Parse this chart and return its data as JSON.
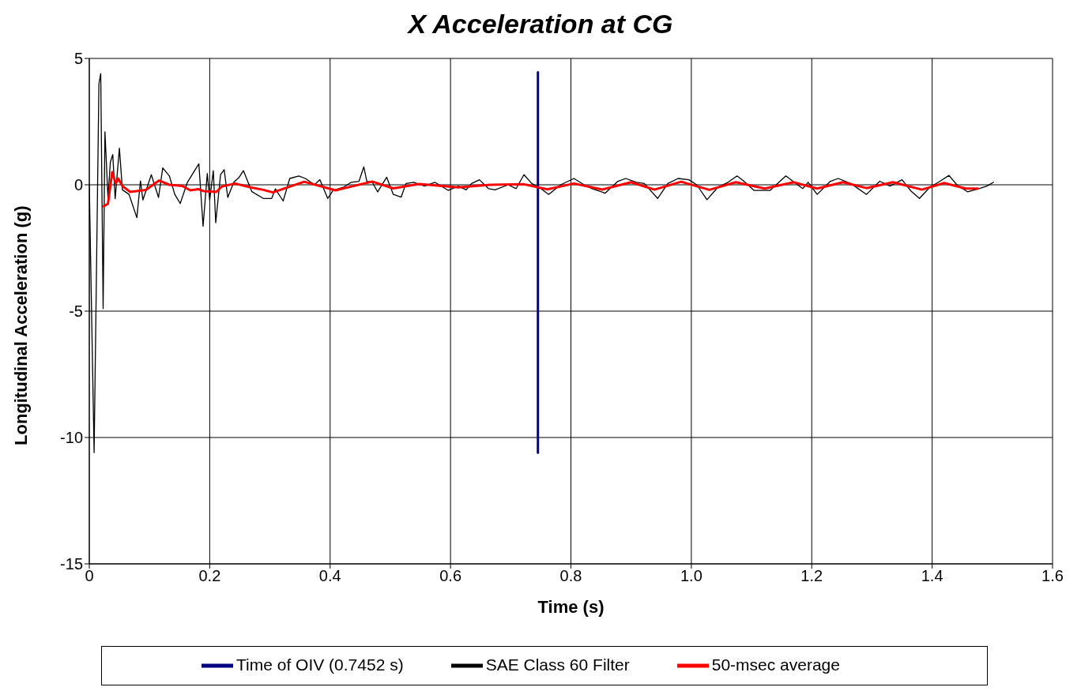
{
  "chart_data": {
    "type": "line",
    "title": "X Acceleration at CG",
    "xlabel": "Time (s)",
    "ylabel": "Longitudinal Acceleration (g)",
    "xlim": [
      0,
      1.6
    ],
    "xticks": [
      0,
      0.2,
      0.4,
      0.6,
      0.8,
      {
        "value": 1,
        "label": "1.0"
      },
      1.2,
      1.4,
      1.6
    ],
    "ylim": [
      -15,
      5
    ],
    "yticks": [
      -15,
      -10,
      -5,
      0,
      5
    ],
    "grid": true,
    "legend": "bottom",
    "marker": "none",
    "line_style": "solid",
    "series": [
      {
        "name": "Time of OIV (0.7452 s)",
        "color": "#000080",
        "x": [
          0.7452,
          0.7452
        ],
        "values": [
          -10.6,
          4.45
        ]
      },
      {
        "name": "SAE Class 60 Filter",
        "color": "#000000",
        "x": [
          0,
          0.008,
          0.016,
          0.019,
          0.023,
          0.026,
          0.031,
          0.035,
          0.039,
          0.043,
          0.05,
          0.055,
          0.066,
          0.079,
          0.085,
          0.089,
          0.103,
          0.115,
          0.122,
          0.133,
          0.142,
          0.151,
          0.163,
          0.182,
          0.189,
          0.196,
          0.2,
          0.206,
          0.21,
          0.218,
          0.224,
          0.23,
          0.24,
          0.249,
          0.256,
          0.27,
          0.289,
          0.303,
          0.309,
          0.322,
          0.333,
          0.348,
          0.359,
          0.374,
          0.383,
          0.396,
          0.405,
          0.422,
          0.435,
          0.448,
          0.456,
          0.461,
          0.47,
          0.479,
          0.494,
          0.505,
          0.518,
          0.526,
          0.539,
          0.557,
          0.574,
          0.596,
          0.613,
          0.626,
          0.635,
          0.648,
          0.663,
          0.674,
          0.696,
          0.709,
          0.722,
          0.735,
          0.75,
          0.763,
          0.783,
          0.805,
          0.822,
          0.835,
          0.857,
          0.878,
          0.891,
          0.909,
          0.922,
          0.944,
          0.961,
          0.978,
          0.996,
          1.009,
          1.026,
          1.044,
          1.061,
          1.076,
          1.087,
          1.104,
          1.131,
          1.157,
          1.174,
          1.185,
          1.194,
          1.209,
          1.231,
          1.244,
          1.265,
          1.291,
          1.313,
          1.33,
          1.35,
          1.365,
          1.379,
          1.396,
          1.413,
          1.428,
          1.441,
          1.459,
          1.478,
          1.491,
          1.502
        ],
        "values": [
          0,
          -10.6,
          4.0,
          4.4,
          -4.9,
          2.1,
          -0.5,
          0.9,
          1.2,
          -0.55,
          1.45,
          -0.2,
          -0.38,
          -1.3,
          0.15,
          -0.6,
          0.4,
          -0.5,
          0.67,
          0.35,
          -0.38,
          -0.74,
          0.1,
          0.83,
          -1.64,
          0.45,
          -0.6,
          0.56,
          -1.5,
          0.4,
          0.6,
          -0.5,
          0.1,
          0.3,
          0.56,
          -0.27,
          -0.54,
          -0.54,
          -0.16,
          -0.64,
          0.25,
          0.35,
          0.25,
          0,
          0.2,
          -0.54,
          -0.22,
          -0.1,
          0.1,
          0.14,
          0.71,
          0.14,
          0.1,
          -0.28,
          0.3,
          -0.38,
          -0.49,
          0.05,
          0.1,
          -0.05,
          0.1,
          -0.22,
          -0.05,
          -0.2,
          0.05,
          0.2,
          -0.15,
          -0.2,
          0,
          -0.15,
          0.4,
          0.05,
          -0.15,
          -0.38,
          0,
          0.25,
          0,
          -0.15,
          -0.33,
          0.14,
          0.25,
          0.1,
          0.05,
          -0.54,
          0.05,
          0.25,
          0.2,
          0,
          -0.59,
          -0.1,
          0.1,
          0.35,
          0.15,
          -0.22,
          -0.22,
          0.35,
          0.05,
          -0.15,
          0.1,
          -0.38,
          0.14,
          0.25,
          0.05,
          -0.38,
          0.14,
          -0.05,
          0.2,
          -0.25,
          -0.54,
          -0.1,
          0.14,
          0.37,
          0,
          -0.28,
          -0.15,
          -0.05,
          0.1
        ]
      },
      {
        "name": "50-msec average",
        "color": "#ff0000",
        "x": [
          0.024,
          0.031,
          0.038,
          0.044,
          0.048,
          0.055,
          0.068,
          0.094,
          0.116,
          0.133,
          0.155,
          0.168,
          0.181,
          0.19,
          0.211,
          0.22,
          0.242,
          0.268,
          0.289,
          0.305,
          0.357,
          0.409,
          0.47,
          0.505,
          0.548,
          0.613,
          0.666,
          0.722,
          0.761,
          0.805,
          0.852,
          0.9,
          0.939,
          0.983,
          1.03,
          1.074,
          1.122,
          1.17,
          1.209,
          1.252,
          1.291,
          1.335,
          1.383,
          1.42,
          1.456,
          1.476
        ],
        "values": [
          -0.85,
          -0.75,
          0.5,
          0.05,
          0.25,
          -0.05,
          -0.28,
          -0.2,
          0.17,
          0,
          -0.05,
          -0.22,
          -0.17,
          -0.25,
          -0.28,
          -0.07,
          0.05,
          -0.1,
          -0.2,
          -0.3,
          0.12,
          -0.22,
          0.13,
          -0.14,
          0.03,
          -0.1,
          0,
          0.02,
          -0.18,
          0.05,
          -0.19,
          0.1,
          -0.19,
          0.12,
          -0.2,
          0.1,
          -0.15,
          0.1,
          -0.15,
          0.1,
          -0.13,
          0.1,
          -0.19,
          0.07,
          -0.15,
          -0.15
        ]
      }
    ]
  }
}
